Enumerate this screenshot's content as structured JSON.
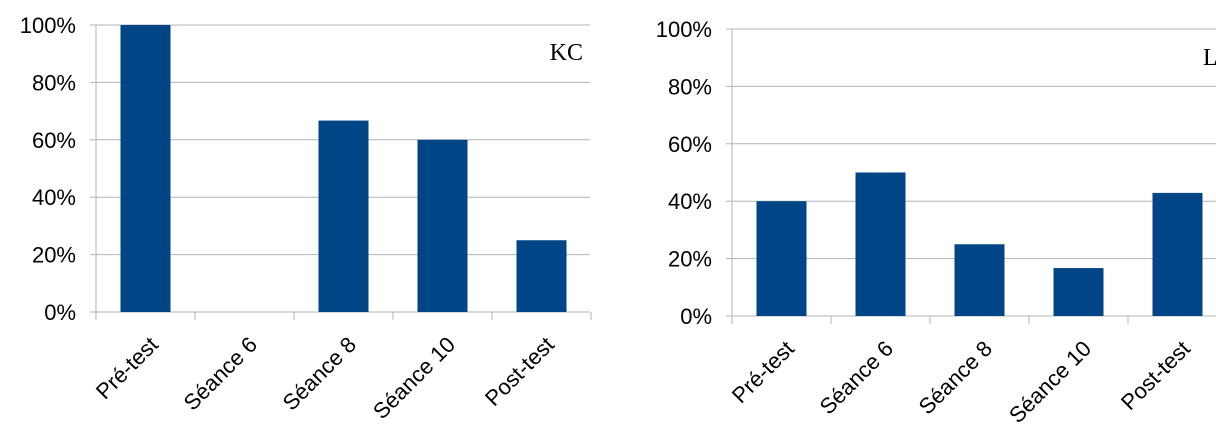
{
  "chart_data": [
    {
      "type": "bar",
      "title": "KC",
      "categories": [
        "Pré-test",
        "Séance 6",
        "Séance 8",
        "Séance 10",
        "Post-test"
      ],
      "values": [
        100,
        0,
        66.7,
        60,
        25
      ],
      "yticks": [
        "0%",
        "20%",
        "40%",
        "60%",
        "80%",
        "100%"
      ],
      "ylim": [
        0,
        100
      ],
      "xlabel": "",
      "ylabel": "",
      "grid": true,
      "bar_color": "#004586"
    },
    {
      "type": "bar",
      "title": "LD",
      "categories": [
        "Pré-test",
        "Séance 6",
        "Séance 8",
        "Séance 10",
        "Post-test"
      ],
      "values": [
        40,
        50,
        25,
        16.7,
        42.9
      ],
      "yticks": [
        "0%",
        "20%",
        "40%",
        "60%",
        "80%",
        "100%"
      ],
      "ylim": [
        0,
        100
      ],
      "xlabel": "",
      "ylabel": "",
      "grid": true,
      "bar_color": "#004586"
    }
  ]
}
